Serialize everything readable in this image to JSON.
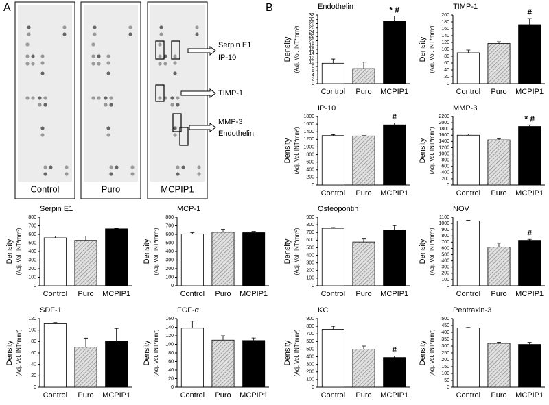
{
  "panel_labels": [
    "A",
    "B"
  ],
  "blots": {
    "labels": [
      "Control",
      "Puro",
      "MCPIP1"
    ],
    "annotations": [
      "Serpin E1",
      "IP-10",
      "TIMP-1",
      "MMP-3",
      "Endothelin"
    ]
  },
  "chart_data": [
    {
      "type": "bar",
      "title": "Endothelin",
      "y_label": "Density",
      "y_label_sub": "(Adj. Vol. INT*mm²)",
      "categories": [
        "Control",
        "Puro",
        "MCPIP1"
      ],
      "values": [
        9.5,
        7,
        29
      ],
      "errors": [
        2,
        3,
        2.5
      ],
      "annotations": [
        null,
        null,
        "* #"
      ],
      "colors": [
        "#ffffff",
        "#c8c8c8",
        "#000000"
      ],
      "hatch": [
        false,
        true,
        false
      ],
      "ylim": [
        0,
        32
      ],
      "yticks": [
        0,
        2,
        4,
        6,
        8,
        10,
        12,
        14,
        16,
        18,
        20,
        22,
        24,
        26,
        28,
        30,
        32
      ]
    },
    {
      "type": "bar",
      "title": "TIMP-1",
      "y_label": "Density",
      "y_label_sub": "(Adj. Vol. INT*mm²)",
      "categories": [
        "Control",
        "Puro",
        "MCPIP1"
      ],
      "values": [
        90,
        117,
        172
      ],
      "errors": [
        8,
        5,
        18
      ],
      "annotations": [
        null,
        null,
        "#"
      ],
      "colors": [
        "#ffffff",
        "#c8c8c8",
        "#000000"
      ],
      "hatch": [
        false,
        true,
        false
      ],
      "ylim": [
        0,
        200
      ],
      "yticks": [
        0,
        20,
        40,
        60,
        80,
        100,
        120,
        140,
        160,
        180,
        200
      ]
    },
    {
      "type": "bar",
      "title": "IP-10",
      "y_label": "Density",
      "y_label_sub": "(Adj. Vol. INT*mm²)",
      "categories": [
        "Control",
        "Puro",
        "MCPIP1"
      ],
      "values": [
        1300,
        1290,
        1580
      ],
      "errors": [
        25,
        10,
        50
      ],
      "annotations": [
        null,
        null,
        "#"
      ],
      "colors": [
        "#ffffff",
        "#c8c8c8",
        "#000000"
      ],
      "hatch": [
        false,
        true,
        false
      ],
      "ylim": [
        0,
        1800
      ],
      "yticks": [
        0,
        200,
        400,
        600,
        800,
        1000,
        1200,
        1400,
        1600,
        1800
      ]
    },
    {
      "type": "bar",
      "title": "MMP-3",
      "y_label": "Density",
      "y_label_sub": "(Adj. Vol. INT*mm²)",
      "categories": [
        "Control",
        "Puro",
        "MCPIP1"
      ],
      "values": [
        1600,
        1450,
        1880
      ],
      "errors": [
        40,
        40,
        50
      ],
      "annotations": [
        null,
        null,
        "* #"
      ],
      "colors": [
        "#ffffff",
        "#c8c8c8",
        "#000000"
      ],
      "hatch": [
        false,
        true,
        false
      ],
      "ylim": [
        0,
        2200
      ],
      "yticks": [
        0,
        200,
        400,
        600,
        800,
        1000,
        1200,
        1400,
        1600,
        1800,
        2000,
        2200
      ]
    },
    {
      "type": "bar",
      "title": "Serpin E1",
      "y_label": "Density",
      "y_label_sub": "(Adj. Vol. INT*mm²)",
      "categories": [
        "Control",
        "Puro",
        "MCPIP1"
      ],
      "values": [
        560,
        530,
        665
      ],
      "errors": [
        20,
        50,
        5
      ],
      "annotations": [
        null,
        null,
        null
      ],
      "colors": [
        "#ffffff",
        "#c8c8c8",
        "#000000"
      ],
      "hatch": [
        false,
        true,
        false
      ],
      "ylim": [
        0,
        800
      ],
      "yticks": [
        0,
        100,
        200,
        300,
        400,
        500,
        600,
        700,
        800
      ]
    },
    {
      "type": "bar",
      "title": "MCP-1",
      "y_label": "Density",
      "y_label_sub": "(Adj. Vol. INT*mm²)",
      "categories": [
        "Control",
        "Puro",
        "MCPIP1"
      ],
      "values": [
        605,
        625,
        620
      ],
      "errors": [
        15,
        35,
        15
      ],
      "annotations": [
        null,
        null,
        null
      ],
      "colors": [
        "#ffffff",
        "#c8c8c8",
        "#000000"
      ],
      "hatch": [
        false,
        true,
        false
      ],
      "ylim": [
        0,
        800
      ],
      "yticks": [
        0,
        100,
        200,
        300,
        400,
        500,
        600,
        700,
        800
      ]
    },
    {
      "type": "bar",
      "title": "Osteopontin",
      "y_label": "Density",
      "y_label_sub": "(Adj. Vol. INT*mm²)",
      "categories": [
        "Control",
        "Puro",
        "MCPIP1"
      ],
      "values": [
        755,
        575,
        730
      ],
      "errors": [
        10,
        40,
        60
      ],
      "annotations": [
        null,
        null,
        null
      ],
      "colors": [
        "#ffffff",
        "#c8c8c8",
        "#000000"
      ],
      "hatch": [
        false,
        true,
        false
      ],
      "ylim": [
        0,
        900
      ],
      "yticks": [
        0,
        100,
        200,
        300,
        400,
        500,
        600,
        700,
        800,
        900
      ]
    },
    {
      "type": "bar",
      "title": "NOV",
      "y_label": "Density",
      "y_label_sub": "(Adj. Vol. INT*mm²)",
      "categories": [
        "Control",
        "Puro",
        "MCPIP1"
      ],
      "values": [
        1040,
        620,
        730
      ],
      "errors": [
        10,
        65,
        15
      ],
      "annotations": [
        null,
        null,
        "#"
      ],
      "colors": [
        "#ffffff",
        "#c8c8c8",
        "#000000"
      ],
      "hatch": [
        false,
        true,
        false
      ],
      "ylim": [
        0,
        1100
      ],
      "yticks": [
        0,
        100,
        200,
        300,
        400,
        500,
        600,
        700,
        800,
        900,
        1000,
        1100
      ]
    },
    {
      "type": "bar",
      "title": "SDF-1",
      "y_label": "Density",
      "y_label_sub": "(Adj. Vol. INT*mm²)",
      "categories": [
        "Control",
        "Puro",
        "MCPIP1"
      ],
      "values": [
        111,
        70,
        81
      ],
      "errors": [
        2,
        16,
        22
      ],
      "annotations": [
        null,
        null,
        null
      ],
      "colors": [
        "#ffffff",
        "#c8c8c8",
        "#000000"
      ],
      "hatch": [
        false,
        true,
        false
      ],
      "ylim": [
        0,
        120
      ],
      "yticks": [
        0,
        20,
        40,
        60,
        80,
        100,
        120
      ]
    },
    {
      "type": "bar",
      "title": "FGF-α",
      "y_label": "Density",
      "y_label_sub": "(Adj. Vol. INT*mm²)",
      "categories": [
        "Control",
        "Puro",
        "MCPIP1"
      ],
      "values": [
        138,
        110,
        109
      ],
      "errors": [
        16,
        10,
        6
      ],
      "annotations": [
        null,
        null,
        null
      ],
      "colors": [
        "#ffffff",
        "#c8c8c8",
        "#000000"
      ],
      "hatch": [
        false,
        true,
        false
      ],
      "ylim": [
        0,
        160
      ],
      "yticks": [
        0,
        20,
        40,
        60,
        80,
        100,
        120,
        140,
        160
      ]
    },
    {
      "type": "bar",
      "title": "KC",
      "y_label": "Density",
      "y_label_sub": "(Adj. Vol. INT*mm²)",
      "categories": [
        "Control",
        "Puro",
        "MCPIP1"
      ],
      "values": [
        760,
        500,
        390
      ],
      "errors": [
        40,
        40,
        20
      ],
      "annotations": [
        null,
        null,
        "#"
      ],
      "colors": [
        "#ffffff",
        "#c8c8c8",
        "#000000"
      ],
      "hatch": [
        false,
        true,
        false
      ],
      "ylim": [
        0,
        900
      ],
      "yticks": [
        0,
        100,
        200,
        300,
        400,
        500,
        600,
        700,
        800,
        900
      ]
    },
    {
      "type": "bar",
      "title": "Pentraxin-3",
      "y_label": "Density",
      "y_label_sub": "(Adj. Vol. INT*mm²)",
      "categories": [
        "Control",
        "Puro",
        "MCPIP1"
      ],
      "values": [
        432,
        320,
        312
      ],
      "errors": [
        4,
        8,
        15
      ],
      "annotations": [
        null,
        null,
        null
      ],
      "colors": [
        "#ffffff",
        "#c8c8c8",
        "#000000"
      ],
      "hatch": [
        false,
        true,
        false
      ],
      "ylim": [
        0,
        500
      ],
      "yticks": [
        0,
        50,
        100,
        150,
        200,
        250,
        300,
        350,
        400,
        450,
        500
      ]
    }
  ]
}
